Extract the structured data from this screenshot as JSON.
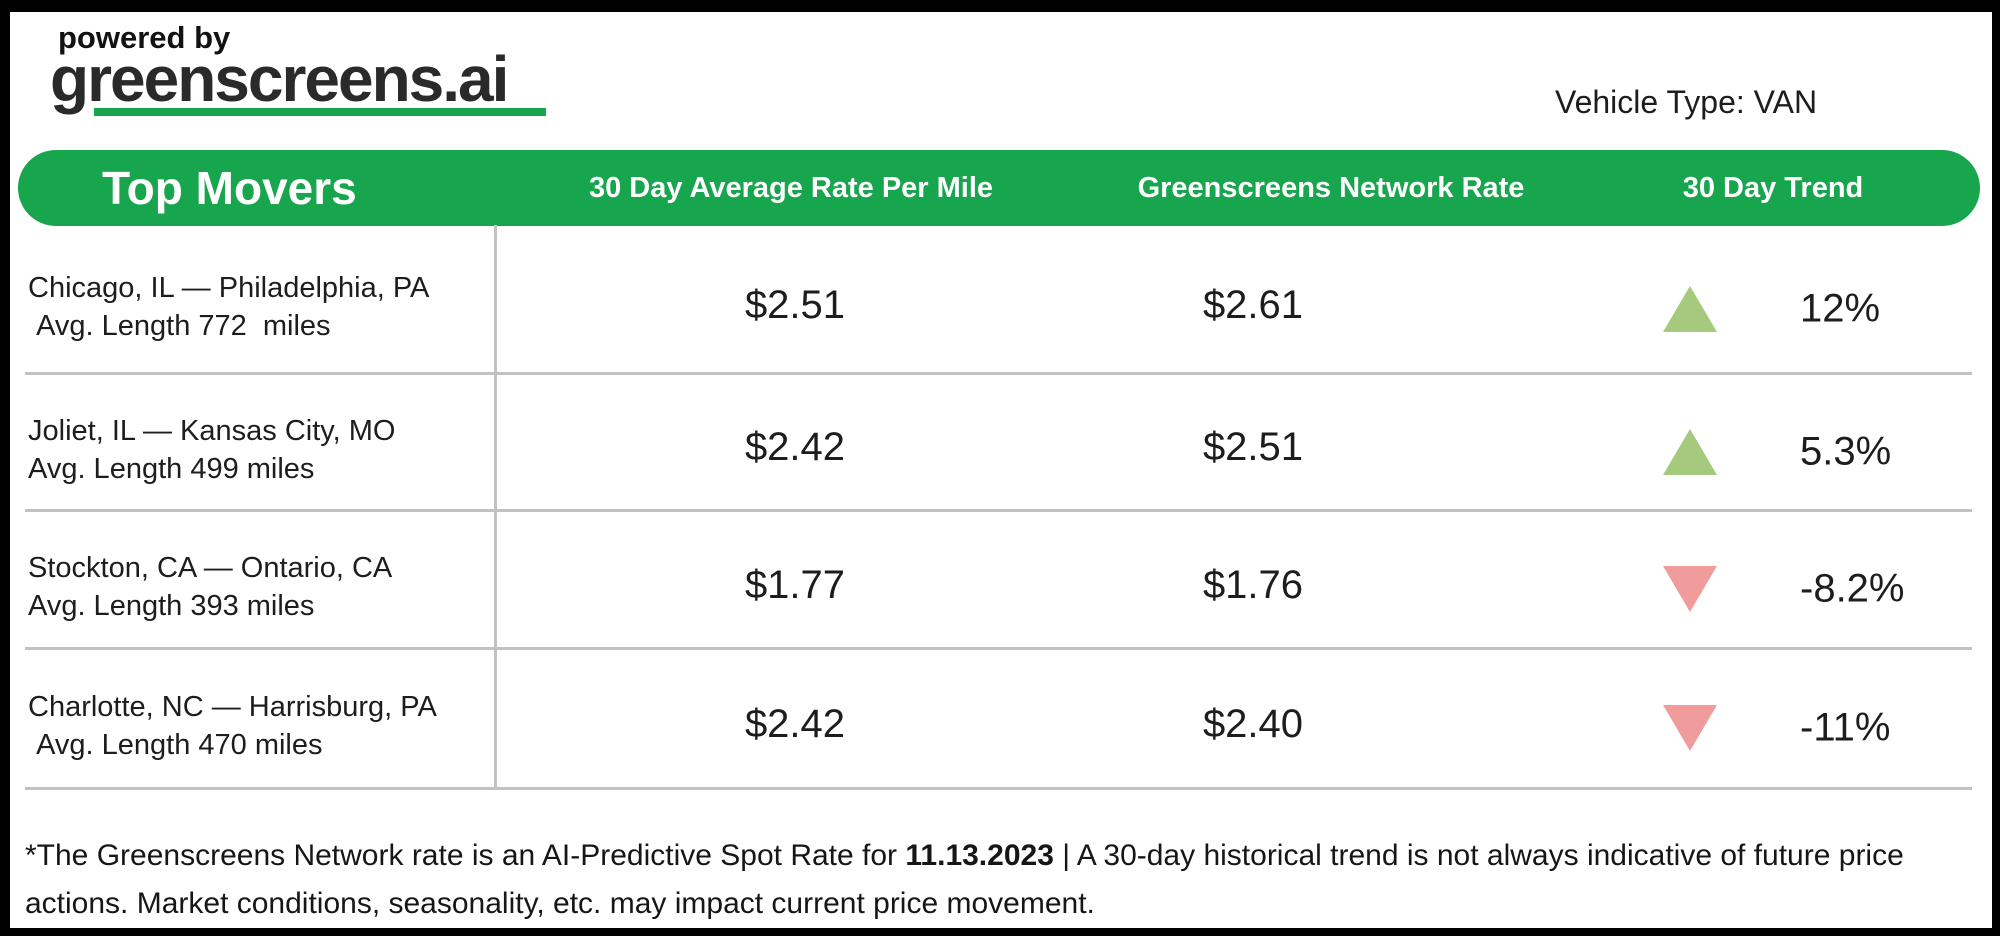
{
  "branding": {
    "powered_by": "powered by",
    "logo_text": "greenscreens.ai"
  },
  "vehicle_type": "Vehicle Type: VAN",
  "table_header": {
    "title": "Top Movers",
    "col_rate": "30 Day Average Rate Per Mile",
    "col_network": "Greenscreens Network Rate",
    "col_trend": "30 Day Trend"
  },
  "chart_data": {
    "type": "table",
    "title": "Top Movers",
    "columns": [
      "Top Movers",
      "30 Day Average Rate Per Mile",
      "Greenscreens Network Rate",
      "30 Day Trend"
    ],
    "rows": [
      {
        "lane": "Chicago, IL — Philadelphia, PA",
        "avg_length": " Avg. Length 772  miles",
        "rate_30day": "$2.51",
        "network_rate": "$2.61",
        "trend_direction": "up",
        "trend_pct": "12%"
      },
      {
        "lane": "Joliet, IL — Kansas City, MO",
        "avg_length": "Avg. Length 499 miles",
        "rate_30day": "$2.42",
        "network_rate": "$2.51",
        "trend_direction": "up",
        "trend_pct": "5.3%"
      },
      {
        "lane": "Stockton, CA — Ontario, CA",
        "avg_length": "Avg. Length 393 miles",
        "rate_30day": "$1.77",
        "network_rate": "$1.76",
        "trend_direction": "down",
        "trend_pct": "-8.2%"
      },
      {
        "lane": "Charlotte, NC — Harrisburg, PA",
        "avg_length": " Avg. Length 470 miles",
        "rate_30day": "$2.42",
        "network_rate": "$2.40",
        "trend_direction": "down",
        "trend_pct": "-11%"
      }
    ]
  },
  "footnote": {
    "text_before_date": "*The Greenscreens Network rate is an AI-Predictive Spot Rate for ",
    "date": "11.13.2023",
    "text_after_date": " | A 30-day historical trend is not always indicative of future price actions. Market conditions, seasonality, etc. may impact current price movement."
  },
  "colors": {
    "brand_green": "#17A54E",
    "trend_up_green": "#A5CA7D",
    "trend_down_red": "#F19C9C",
    "divider_gray": "#C2C2C2",
    "text_dark": "#1D1D1F"
  }
}
